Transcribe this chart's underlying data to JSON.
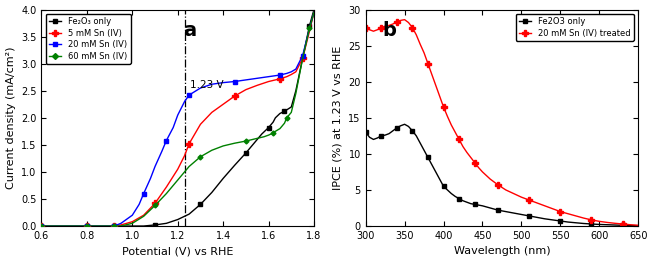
{
  "panel_a": {
    "title": "a",
    "xlabel": "Potential (V) vs RHE",
    "ylabel": "Current density (mA/cm²)",
    "xlim": [
      0.6,
      1.8
    ],
    "ylim": [
      0.0,
      4.0
    ],
    "yticks": [
      0.0,
      0.5,
      1.0,
      1.5,
      2.0,
      2.5,
      3.0,
      3.5,
      4.0
    ],
    "xticks": [
      0.6,
      0.8,
      1.0,
      1.2,
      1.4,
      1.6,
      1.8
    ],
    "vline_x": 1.23,
    "vline_label": "1.23 V",
    "series": [
      {
        "label": "Fe₂O₃ only",
        "color": "black",
        "x": [
          0.6,
          0.65,
          0.7,
          0.75,
          0.8,
          0.85,
          0.88,
          0.9,
          0.92,
          0.95,
          1.0,
          1.05,
          1.1,
          1.15,
          1.2,
          1.25,
          1.3,
          1.35,
          1.4,
          1.45,
          1.5,
          1.53,
          1.55,
          1.57,
          1.6,
          1.62,
          1.63,
          1.65,
          1.67,
          1.7,
          1.72,
          1.75,
          1.78,
          1.8
        ],
        "y": [
          0.0,
          0.0,
          0.0,
          0.0,
          0.0,
          0.0,
          0.0,
          0.0,
          0.0,
          0.0,
          0.0,
          0.0,
          0.02,
          0.05,
          0.12,
          0.22,
          0.4,
          0.62,
          0.88,
          1.12,
          1.35,
          1.5,
          1.6,
          1.7,
          1.82,
          1.92,
          2.0,
          2.08,
          2.12,
          2.2,
          2.5,
          3.1,
          3.7,
          4.0
        ]
      },
      {
        "label": "5 mM Sn (IV)",
        "color": "red",
        "x": [
          0.6,
          0.65,
          0.7,
          0.75,
          0.8,
          0.85,
          0.88,
          0.9,
          0.92,
          0.95,
          1.0,
          1.05,
          1.1,
          1.15,
          1.2,
          1.23,
          1.25,
          1.3,
          1.35,
          1.4,
          1.45,
          1.5,
          1.55,
          1.6,
          1.65,
          1.68,
          1.7,
          1.72,
          1.75,
          1.78,
          1.8
        ],
        "y": [
          0.0,
          0.0,
          0.0,
          0.0,
          0.0,
          0.0,
          0.0,
          0.0,
          0.0,
          0.02,
          0.08,
          0.2,
          0.42,
          0.72,
          1.05,
          1.3,
          1.52,
          1.88,
          2.1,
          2.25,
          2.4,
          2.52,
          2.6,
          2.67,
          2.72,
          2.76,
          2.8,
          2.85,
          3.1,
          3.6,
          3.95
        ]
      },
      {
        "label": "20 mM Sn (IV)",
        "color": "blue",
        "x": [
          0.6,
          0.65,
          0.7,
          0.75,
          0.8,
          0.85,
          0.88,
          0.9,
          0.92,
          0.95,
          1.0,
          1.03,
          1.05,
          1.08,
          1.1,
          1.13,
          1.15,
          1.18,
          1.2,
          1.23,
          1.25,
          1.3,
          1.35,
          1.4,
          1.45,
          1.5,
          1.55,
          1.6,
          1.65,
          1.68,
          1.7,
          1.72,
          1.75,
          1.78,
          1.8
        ],
        "y": [
          0.0,
          0.0,
          0.0,
          0.0,
          0.0,
          0.0,
          0.0,
          0.0,
          0.0,
          0.05,
          0.2,
          0.4,
          0.6,
          0.88,
          1.1,
          1.38,
          1.58,
          1.82,
          2.05,
          2.3,
          2.42,
          2.55,
          2.62,
          2.65,
          2.67,
          2.7,
          2.73,
          2.76,
          2.79,
          2.82,
          2.85,
          2.9,
          3.15,
          3.65,
          3.95
        ]
      },
      {
        "label": "60 mM Sn (IV)",
        "color": "green",
        "x": [
          0.6,
          0.65,
          0.7,
          0.75,
          0.8,
          0.85,
          0.88,
          0.9,
          0.92,
          0.95,
          1.0,
          1.05,
          1.1,
          1.15,
          1.2,
          1.25,
          1.3,
          1.35,
          1.4,
          1.45,
          1.5,
          1.55,
          1.58,
          1.6,
          1.62,
          1.63,
          1.65,
          1.67,
          1.68,
          1.7,
          1.72,
          1.75,
          1.78,
          1.8
        ],
        "y": [
          0.0,
          0.0,
          0.0,
          0.0,
          0.0,
          0.0,
          0.0,
          0.0,
          0.0,
          0.0,
          0.05,
          0.18,
          0.38,
          0.6,
          0.85,
          1.1,
          1.28,
          1.4,
          1.48,
          1.53,
          1.57,
          1.62,
          1.65,
          1.68,
          1.72,
          1.75,
          1.8,
          1.9,
          2.0,
          2.1,
          2.45,
          3.1,
          3.65,
          3.95
        ]
      }
    ]
  },
  "panel_b": {
    "title": "b",
    "xlabel": "Wavelength (nm)",
    "ylabel": "IPCE (%) at 1.23 V vs RHE",
    "xlim": [
      300,
      650
    ],
    "ylim": [
      0,
      30
    ],
    "yticks": [
      0,
      5,
      10,
      15,
      20,
      25,
      30
    ],
    "xticks": [
      300,
      350,
      400,
      450,
      500,
      550,
      600,
      650
    ],
    "series": [
      {
        "label": "Fe2O3 only",
        "color": "black",
        "x": [
          300,
          305,
          310,
          315,
          320,
          325,
          330,
          335,
          340,
          345,
          350,
          355,
          360,
          365,
          370,
          375,
          380,
          385,
          390,
          395,
          400,
          405,
          410,
          415,
          420,
          425,
          430,
          435,
          440,
          445,
          450,
          460,
          470,
          480,
          490,
          500,
          510,
          520,
          530,
          540,
          550,
          560,
          570,
          580,
          590,
          600,
          610,
          620,
          630,
          640,
          650
        ],
        "y": [
          13.0,
          12.3,
          12.0,
          12.2,
          12.5,
          12.6,
          12.8,
          13.2,
          13.6,
          13.9,
          14.1,
          13.8,
          13.2,
          12.5,
          11.5,
          10.5,
          9.5,
          8.5,
          7.5,
          6.5,
          5.5,
          5.0,
          4.5,
          4.1,
          3.8,
          3.5,
          3.3,
          3.1,
          3.0,
          2.9,
          2.8,
          2.5,
          2.2,
          2.0,
          1.8,
          1.6,
          1.4,
          1.2,
          1.0,
          0.85,
          0.7,
          0.55,
          0.45,
          0.35,
          0.28,
          0.22,
          0.18,
          0.14,
          0.1,
          0.07,
          0.05
        ]
      },
      {
        "label": "20 mM Sn (IV) treated",
        "color": "red",
        "x": [
          300,
          305,
          310,
          315,
          320,
          325,
          330,
          335,
          340,
          345,
          350,
          355,
          360,
          365,
          370,
          375,
          380,
          385,
          390,
          395,
          400,
          405,
          410,
          415,
          420,
          425,
          430,
          435,
          440,
          445,
          450,
          460,
          470,
          480,
          490,
          500,
          510,
          520,
          530,
          540,
          550,
          560,
          570,
          580,
          590,
          600,
          610,
          620,
          630,
          640,
          650
        ],
        "y": [
          27.5,
          27.2,
          27.0,
          27.2,
          27.5,
          27.7,
          27.8,
          28.0,
          28.3,
          28.5,
          28.6,
          28.2,
          27.5,
          26.5,
          25.2,
          24.0,
          22.5,
          21.0,
          19.5,
          18.0,
          16.5,
          15.2,
          14.0,
          13.0,
          12.0,
          11.0,
          10.2,
          9.5,
          8.8,
          8.1,
          7.5,
          6.5,
          5.7,
          5.0,
          4.5,
          4.0,
          3.6,
          3.2,
          2.8,
          2.4,
          2.0,
          1.7,
          1.4,
          1.1,
          0.85,
          0.65,
          0.5,
          0.38,
          0.28,
          0.18,
          0.1
        ]
      }
    ]
  }
}
